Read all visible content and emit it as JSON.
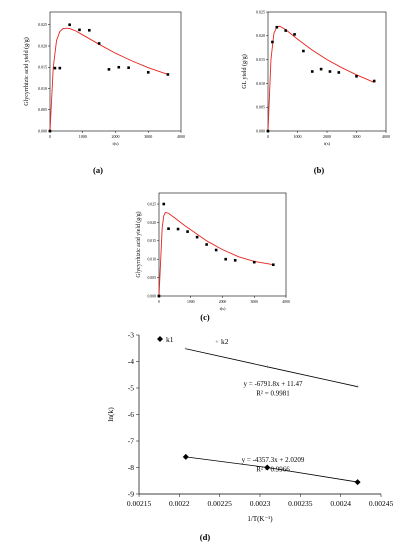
{
  "chart_data": [
    {
      "type": "scatter",
      "panel_label": "(a)",
      "xlabel": "t(s)",
      "ylabel": "Glycyrrhizic acid yield (g/g)",
      "xlim": [
        0,
        4000
      ],
      "ylim": [
        0.0,
        0.028
      ],
      "xticks": [
        0,
        1000,
        2000,
        3000,
        4000
      ],
      "yticks": [
        0.0,
        0.005,
        0.01,
        0.015,
        0.02,
        0.025
      ],
      "ytick_labels": [
        "0.000",
        "0.005",
        "0.010",
        "0.015",
        "0.020",
        "0.025"
      ],
      "series": [
        {
          "role": "experimental",
          "x": [
            0,
            150,
            300,
            600,
            900,
            1200,
            1500,
            1800,
            2100,
            2400,
            3000,
            3600
          ],
          "y": [
            0.0,
            0.0148,
            0.0148,
            0.025,
            0.0238,
            0.0237,
            0.0206,
            0.0145,
            0.015,
            0.0149,
            0.0138,
            0.0133
          ]
        },
        {
          "role": "fit",
          "x": [
            0,
            100,
            200,
            300,
            400,
            500,
            600,
            800,
            1000,
            1500,
            2000,
            2500,
            3000,
            3600
          ],
          "y": [
            0.0,
            0.015,
            0.0213,
            0.0234,
            0.0241,
            0.0242,
            0.0241,
            0.0235,
            0.0226,
            0.0204,
            0.0183,
            0.0165,
            0.0149,
            0.0133
          ]
        }
      ]
    },
    {
      "type": "scatter",
      "panel_label": "(b)",
      "xlabel": "t(s)",
      "ylabel": "GL yield (g/g)",
      "xlim": [
        0,
        4000
      ],
      "ylim": [
        0.0,
        0.025
      ],
      "xticks": [
        0,
        1000,
        2000,
        3000,
        4000
      ],
      "yticks": [
        0.0,
        0.005,
        0.01,
        0.015,
        0.02,
        0.025
      ],
      "ytick_labels": [
        "0.000",
        "0.005",
        "0.010",
        "0.015",
        "0.020",
        "0.025"
      ],
      "series": [
        {
          "role": "experimental",
          "x": [
            0,
            150,
            300,
            600,
            900,
            1200,
            1500,
            1800,
            2100,
            2400,
            3000,
            3600
          ],
          "y": [
            0.0,
            0.0187,
            0.0218,
            0.0211,
            0.0203,
            0.0168,
            0.0125,
            0.013,
            0.0125,
            0.0123,
            0.0115,
            0.0105
          ]
        },
        {
          "role": "fit",
          "x": [
            0,
            100,
            200,
            300,
            400,
            600,
            800,
            1000,
            1500,
            2000,
            2500,
            3000,
            3600
          ],
          "y": [
            0.0,
            0.015,
            0.0205,
            0.0219,
            0.022,
            0.0213,
            0.0203,
            0.0193,
            0.017,
            0.015,
            0.0133,
            0.0118,
            0.0102
          ]
        }
      ]
    },
    {
      "type": "scatter",
      "panel_label": "(c)",
      "xlabel": "t(s)",
      "ylabel": "Glycyrrhizic acid yield (g/g)",
      "xlim": [
        0,
        4000
      ],
      "ylim": [
        0.0,
        0.028
      ],
      "xticks": [
        0,
        1000,
        2000,
        3000,
        4000
      ],
      "yticks": [
        0.0,
        0.005,
        0.01,
        0.015,
        0.02,
        0.025
      ],
      "ytick_labels": [
        "0.000",
        "0.005",
        "0.010",
        "0.015",
        "0.020",
        "0.025"
      ],
      "series": [
        {
          "role": "experimental",
          "x": [
            0,
            150,
            300,
            600,
            900,
            1200,
            1500,
            1800,
            2100,
            2400,
            3000,
            3600
          ],
          "y": [
            0.0,
            0.025,
            0.0183,
            0.0182,
            0.0175,
            0.016,
            0.014,
            0.0125,
            0.01,
            0.0097,
            0.0092,
            0.0085
          ]
        },
        {
          "role": "fit",
          "x": [
            0,
            100,
            150,
            200,
            300,
            500,
            800,
            1000,
            1500,
            2000,
            2500,
            3000,
            3600
          ],
          "y": [
            0.0,
            0.0185,
            0.0218,
            0.0227,
            0.0225,
            0.0212,
            0.0192,
            0.018,
            0.015,
            0.0126,
            0.0107,
            0.0094,
            0.0085
          ]
        }
      ]
    },
    {
      "type": "scatter",
      "panel_label": "(d)",
      "xlabel": "1/T(K⁻¹)",
      "ylabel": "ln(k)",
      "xlim": [
        0.00215,
        0.00245
      ],
      "ylim": [
        -9,
        -3
      ],
      "xticks": [
        0.00215,
        0.0022,
        0.00225,
        0.0023,
        0.00235,
        0.0024,
        0.00245
      ],
      "xtick_labels": [
        "0.00215",
        "0.0022",
        "0.00225",
        "0.0023",
        "0.00235",
        "0.0024",
        "0.00245"
      ],
      "yticks": [
        -9,
        -8,
        -7,
        -6,
        -5,
        -4,
        -3
      ],
      "series": [
        {
          "name": "k1",
          "x": [
            0.002208,
            0.002309,
            0.002421
          ],
          "y": [
            -7.6,
            -8.0,
            -8.55
          ]
        },
        {
          "name": "k2",
          "x": [
            0.002208,
            0.002309,
            0.002421
          ],
          "y": [
            -3.52,
            -4.2,
            -4.95
          ]
        }
      ],
      "annotations": [
        {
          "lines": [
            "y = -6791.8x + 11.47",
            "R² = 0.9981"
          ]
        },
        {
          "lines": [
            "y = -4357.3x + 2.0209",
            "R² = 0.9966"
          ]
        }
      ],
      "legend": "top-left"
    }
  ],
  "colors": {
    "fit_line": "#e8241e",
    "data_point": "#000000",
    "regression_line": "#000000"
  }
}
